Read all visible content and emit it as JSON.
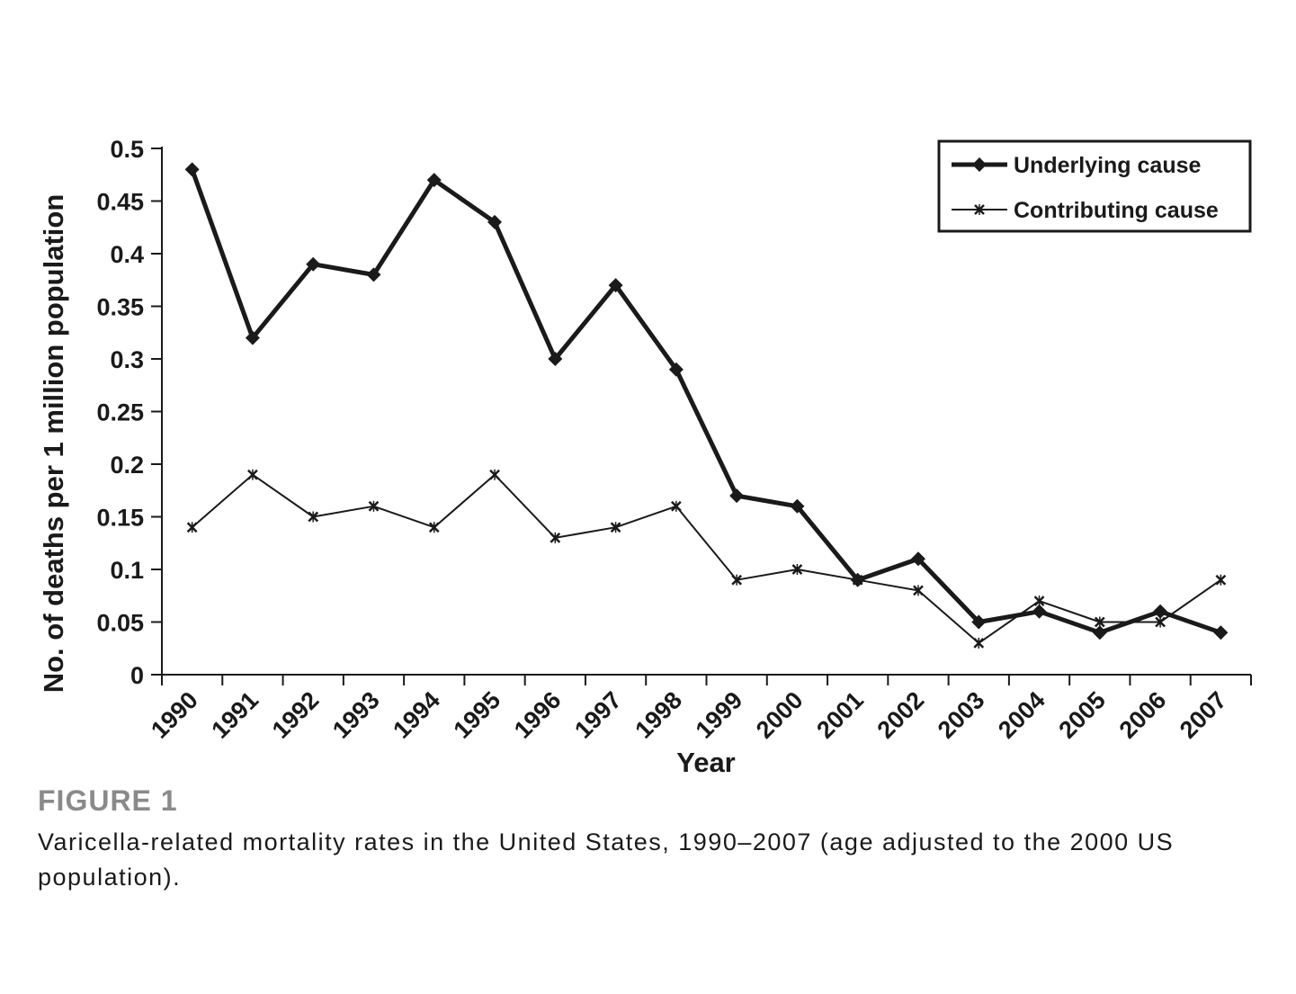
{
  "chart_data": {
    "type": "line",
    "title": "",
    "xlabel": "Year",
    "ylabel": "No. of deaths per 1 million population",
    "ylim": [
      0,
      0.5
    ],
    "yticks": [
      "0",
      "0.05",
      "0.1",
      "0.15",
      "0.2",
      "0.25",
      "0.3",
      "0.35",
      "0.4",
      "0.45",
      "0.5"
    ],
    "categories": [
      "1990",
      "1991",
      "1992",
      "1993",
      "1994",
      "1995",
      "1996",
      "1997",
      "1998",
      "1999",
      "2000",
      "2001",
      "2002",
      "2003",
      "2004",
      "2005",
      "2006",
      "2007"
    ],
    "series": [
      {
        "name": "Underlying cause",
        "marker": "diamond",
        "style": "thick",
        "values": [
          0.48,
          0.32,
          0.39,
          0.38,
          0.47,
          0.43,
          0.3,
          0.37,
          0.29,
          0.17,
          0.16,
          0.09,
          0.11,
          0.05,
          0.06,
          0.04,
          0.06,
          0.04
        ]
      },
      {
        "name": "Contributing cause",
        "marker": "star",
        "style": "thin",
        "values": [
          0.14,
          0.19,
          0.15,
          0.16,
          0.14,
          0.19,
          0.13,
          0.14,
          0.16,
          0.09,
          0.1,
          0.09,
          0.08,
          0.03,
          0.07,
          0.05,
          0.05,
          0.09
        ]
      }
    ],
    "legend_position": "top-right",
    "line_color": "#1a1a1a"
  },
  "figure": {
    "label": "FIGURE 1",
    "caption": "Varicella-related mortality rates in the United States, 1990–2007 (age adjusted to the 2000 US population)."
  }
}
